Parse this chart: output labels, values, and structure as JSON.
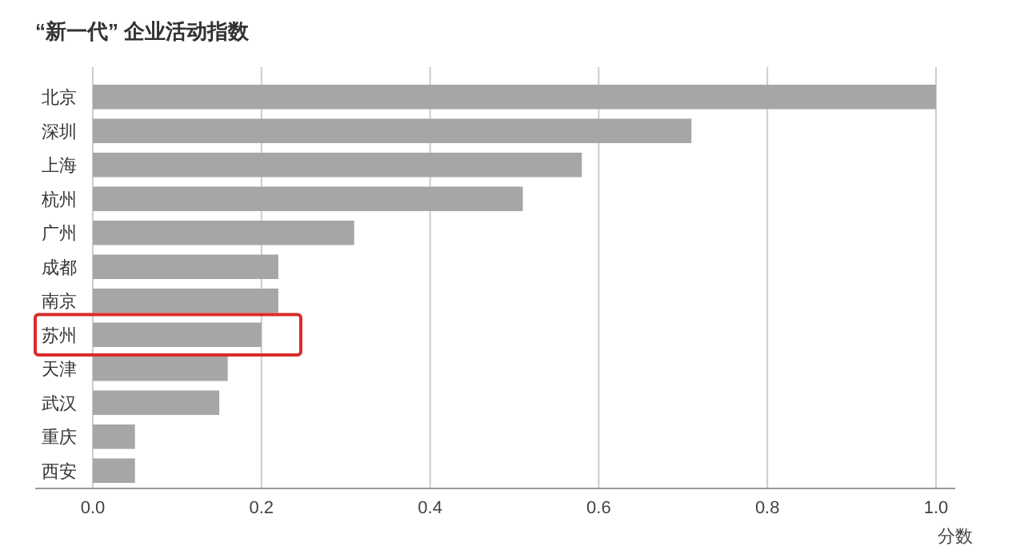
{
  "chart_data": {
    "type": "bar",
    "orientation": "horizontal",
    "title": "“新一代” 企业活动指数",
    "xlabel": "分数",
    "categories": [
      "北京",
      "深圳",
      "上海",
      "杭州",
      "广州",
      "成都",
      "南京",
      "苏州",
      "天津",
      "武汉",
      "重庆",
      "西安"
    ],
    "values": [
      1.0,
      0.71,
      0.58,
      0.51,
      0.31,
      0.22,
      0.22,
      0.2,
      0.16,
      0.15,
      0.05,
      0.05
    ],
    "color": "#a6a6a6",
    "xlim": [
      0,
      1.0
    ],
    "xticks": [
      {
        "value": 0,
        "label": "0.0"
      },
      {
        "value": 0.2,
        "label": "0.2"
      },
      {
        "value": 0.4,
        "label": "0.4"
      },
      {
        "value": 0.6,
        "label": "0.6"
      },
      {
        "value": 0.8,
        "label": "0.8"
      },
      {
        "value": 1.0,
        "label": "1.0"
      }
    ],
    "grid": "x"
  }
}
